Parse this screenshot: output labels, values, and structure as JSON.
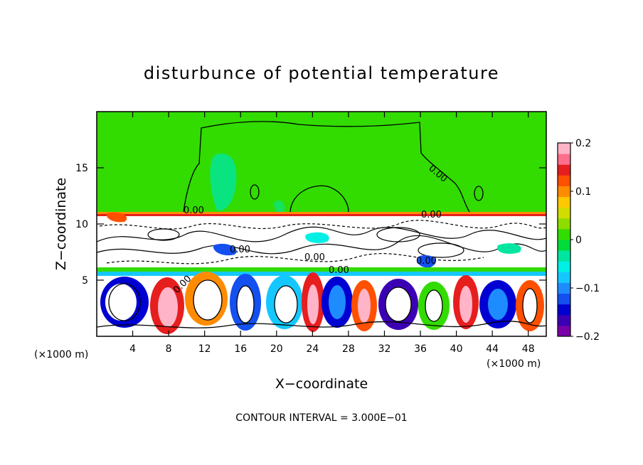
{
  "chart_data": {
    "type": "heatmap",
    "title": "disturbunce of potential temperature",
    "xlabel": "X−coordinate",
    "ylabel": "Z−coordinate",
    "x_unit_left": "(×1000 m)",
    "x_unit_right": "(×1000 m)",
    "xlim": [
      0,
      50
    ],
    "ylim": [
      0,
      20
    ],
    "x_ticks": [
      4,
      8,
      12,
      16,
      20,
      24,
      28,
      32,
      36,
      40,
      44,
      48
    ],
    "y_ticks": [
      5,
      10,
      15
    ],
    "colorbar": {
      "range": [
        -0.2,
        0.2
      ],
      "ticks": [
        {
          "value": 0.2,
          "label": "0.2"
        },
        {
          "value": 0.1,
          "label": "0.1"
        },
        {
          "value": 0,
          "label": "0"
        },
        {
          "value": -0.1,
          "label": "−0.1"
        },
        {
          "value": -0.2,
          "label": "−0.2"
        }
      ],
      "colors": [
        "#7a00a8",
        "#3c00b4",
        "#0000d2",
        "#1450f0",
        "#1e8cff",
        "#14c8ff",
        "#00f0e6",
        "#00e6a0",
        "#00dc3c",
        "#32dc00",
        "#8cdc00",
        "#d2dc00",
        "#ffc800",
        "#ff8c00",
        "#ff5000",
        "#e61e1e",
        "#ff6e8c",
        "#ffb4c8"
      ]
    },
    "contour_labels": [
      "0.00",
      "0.00",
      "0.00",
      "0.00",
      "0.00",
      "0.00",
      "0.00",
      "0.00"
    ],
    "footer": "CONTOUR INTERVAL = 3.000E−01",
    "grid": false,
    "legend": "colorbar-right"
  }
}
